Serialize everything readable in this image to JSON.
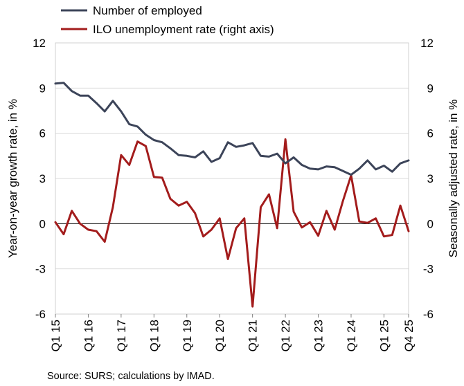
{
  "chart_data": {
    "type": "line",
    "title": "",
    "legend": [
      {
        "name": "Number of employed",
        "color": "#3c4459"
      },
      {
        "name": "ILO unemployment rate (right axis)",
        "color": "#a31c1c"
      }
    ],
    "y_left": {
      "label": "Year-on-year growth rate, in %",
      "ylim": [
        -6,
        12
      ],
      "ticks": [
        "-6",
        "-3",
        "0",
        "3",
        "6",
        "9",
        "12"
      ]
    },
    "y_right": {
      "label": "Seasonally adjusted rate, in %",
      "ylim": [
        -6,
        12
      ],
      "ticks": [
        "-6",
        "-3",
        "0",
        "3",
        "6",
        "9",
        "12"
      ]
    },
    "x_tick_labels": [
      "Q1 15",
      "Q1 16",
      "Q1 17",
      "Q1 18",
      "Q1 19",
      "Q1 20",
      "Q1 21",
      "Q1 22",
      "Q1 23",
      "Q1 24",
      "Q1 25",
      "Q4 25"
    ],
    "x_tick_quarter_index": [
      0,
      4,
      8,
      12,
      16,
      20,
      24,
      28,
      32,
      36,
      40,
      43
    ],
    "grid": true,
    "source": "Source: SURS; calculations by IMAD.",
    "series": [
      {
        "name": "Number of employed",
        "axis": "left",
        "color": "#3c4459",
        "values": [
          9.3,
          9.35,
          8.8,
          8.5,
          8.5,
          8.0,
          7.45,
          8.15,
          7.45,
          6.6,
          6.45,
          5.9,
          5.55,
          5.4,
          5.0,
          4.55,
          4.5,
          4.4,
          4.8,
          4.1,
          4.35,
          5.4,
          5.1,
          5.2,
          5.35,
          4.5,
          4.45,
          4.65,
          4.0,
          4.4,
          3.9,
          3.65,
          3.6,
          3.8,
          3.75,
          3.5,
          3.25,
          3.65,
          4.2,
          3.6,
          3.85,
          3.45,
          4.0,
          4.2
        ]
      },
      {
        "name": "ILO unemployment rate (right axis)",
        "axis": "right",
        "color": "#a31c1c",
        "values": [
          0.1,
          -0.7,
          0.85,
          0.0,
          -0.4,
          -0.5,
          -1.2,
          1.1,
          4.55,
          3.9,
          5.45,
          5.15,
          3.1,
          3.05,
          1.65,
          1.2,
          1.45,
          0.7,
          -0.85,
          -0.4,
          0.35,
          -2.35,
          -0.3,
          0.35,
          -5.5,
          1.1,
          1.95,
          -0.3,
          5.6,
          0.8,
          -0.25,
          0.1,
          -0.8,
          0.85,
          -0.4,
          1.5,
          3.2,
          0.15,
          0.05,
          0.35,
          -0.85,
          -0.75,
          1.2,
          -0.5
        ]
      }
    ]
  }
}
